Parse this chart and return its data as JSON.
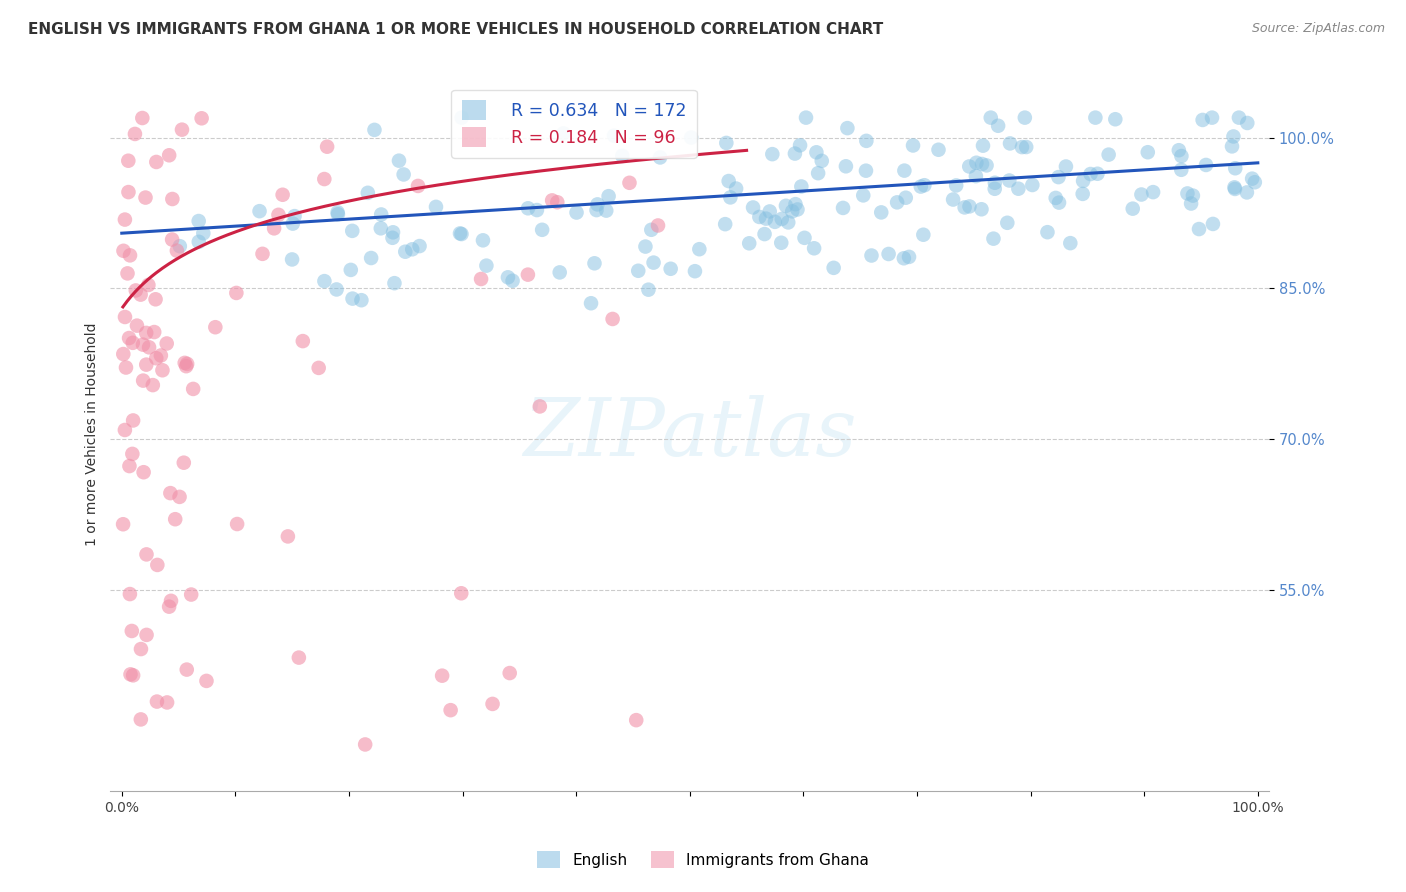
{
  "title": "ENGLISH VS IMMIGRANTS FROM GHANA 1 OR MORE VEHICLES IN HOUSEHOLD CORRELATION CHART",
  "source": "Source: ZipAtlas.com",
  "ylabel": "1 or more Vehicles in Household",
  "yticks": [
    0.55,
    0.7,
    0.85,
    1.0
  ],
  "ytick_labels": [
    "55.0%",
    "70.0%",
    "85.0%",
    "100.0%"
  ],
  "english_R": "0.634",
  "english_N": "172",
  "ghana_R": "0.184",
  "ghana_N": "96",
  "english_color": "#85bfe0",
  "ghana_color": "#f090a8",
  "english_line_color": "#2255bb",
  "ghana_line_color": "#cc2244",
  "background_color": "#ffffff",
  "grid_color": "#cccccc",
  "legend_english": "English",
  "legend_ghana": "Immigrants from Ghana",
  "title_fontsize": 11,
  "source_fontsize": 9,
  "axis_label_fontsize": 10,
  "ytick_color": "#5588cc"
}
